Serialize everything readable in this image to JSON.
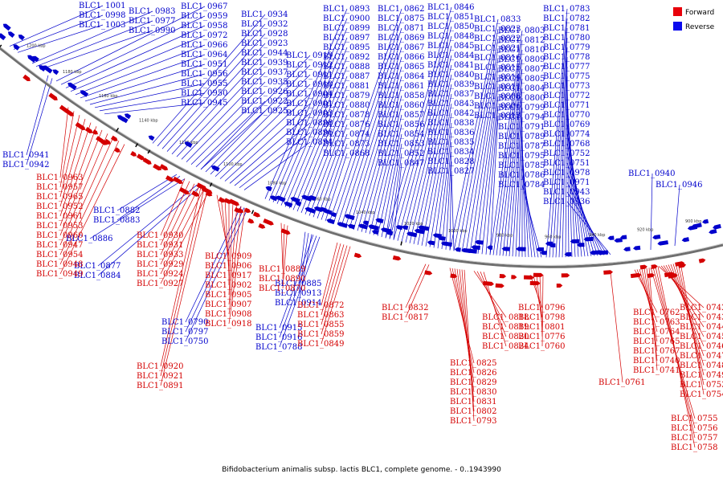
{
  "caption": "Bifidobacterium animalis subsp. lactis BLC1, complete genome. - 0..1943990",
  "legend": [
    {
      "label": "Forward",
      "color": "#e8000a"
    },
    {
      "label": "Reverse",
      "color": "#0a0aee"
    }
  ],
  "colors": {
    "forward": "#d40000",
    "reverse": "#0000cc",
    "backbone": "#6f6f6f"
  },
  "scale_ticks": [
    "1200 kbp",
    "1180 kbp",
    "1160 kbp",
    "1140 kbp",
    "1120 kbp",
    "1100 kbp",
    "1080 kbp",
    "1060 kbp",
    "1040 kbp",
    "1020 kbp",
    "1000 kbp",
    "980 kbp",
    "960 kbp",
    "940 kbp",
    "920 kbp",
    "900 kbp"
  ],
  "reverse_labels": [
    "BLC1_1001",
    "BLC1_0998",
    "BLC1_1003",
    "BLC1_0983",
    "BLC1_0977",
    "BLC1_0990",
    "BLC1_0967",
    "BLC1_0959",
    "BLC1_0958",
    "BLC1_0972",
    "BLC1_0966",
    "BLC1_0964",
    "BLC1_0951",
    "BLC1_0956",
    "BLC1_0955",
    "BLC1_0950",
    "BLC1_0945",
    "BLC1_0934",
    "BLC1_0932",
    "BLC1_0928",
    "BLC1_0923",
    "BLC1_0944",
    "BLC1_0939",
    "BLC1_0937",
    "BLC1_0935",
    "BLC1_0926",
    "BLC1_0922",
    "BLC1_0925",
    "BLC1_0919",
    "BLC1_0912",
    "BLC1_0911",
    "BLC1_0910",
    "BLC1_0904",
    "BLC1_0901",
    "BLC1_0903",
    "BLC1_0898",
    "BLC1_0896",
    "BLC1_0894",
    "BLC1_0893",
    "BLC1_0900",
    "BLC1_0899",
    "BLC1_0897",
    "BLC1_0895",
    "BLC1_0892",
    "BLC1_0888",
    "BLC1_0887",
    "BLC1_0881",
    "BLC1_0879",
    "BLC1_0880",
    "BLC1_0878",
    "BLC1_0876",
    "BLC1_0874",
    "BLC1_0873",
    "BLC1_0868",
    "BLC1_0862",
    "BLC1_0875",
    "BLC1_0871",
    "BLC1_0869",
    "BLC1_0867",
    "BLC1_0866",
    "BLC1_0865",
    "BLC1_0864",
    "BLC1_0861",
    "BLC1_0858",
    "BLC1_0860",
    "BLC1_0857",
    "BLC1_0856",
    "BLC1_0854",
    "BLC1_0853",
    "BLC1_0852",
    "BLC1_0847",
    "BLC1_0846",
    "BLC1_0851",
    "BLC1_0850",
    "BLC1_0848",
    "BLC1_0845",
    "BLC1_0844",
    "BLC1_0841",
    "BLC1_0840",
    "BLC1_0839",
    "BLC1_0837",
    "BLC1_0843",
    "BLC1_0842",
    "BLC1_0838",
    "BLC1_0836",
    "BLC1_0835",
    "BLC1_0834",
    "BLC1_0828",
    "BLC1_0827",
    "BLC1_0833",
    "BLC1_0823",
    "BLC1_0822",
    "BLC1_0821",
    "BLC1_0816",
    "BLC1_0815",
    "BLC1_0814",
    "BLC1_0811",
    "BLC1_0808",
    "BLC1_0806",
    "BLC1_0813",
    "BLC1_0803",
    "BLC1_0812",
    "BLC1_0810",
    "BLC1_0809",
    "BLC1_0807",
    "BLC1_0805",
    "BLC1_0804",
    "BLC1_0800",
    "BLC1_0799",
    "BLC1_0794",
    "BLC1_0791",
    "BLC1_0789",
    "BLC1_0787",
    "BLC1_0795",
    "BLC1_0785",
    "BLC1_0786",
    "BLC1_0784",
    "BLC1_0783",
    "BLC1_0782",
    "BLC1_0781",
    "BLC1_0780",
    "BLC1_0779",
    "BLC1_0778",
    "BLC1_0777",
    "BLC1_0775",
    "BLC1_0773",
    "BLC1_0772",
    "BLC1_0771",
    "BLC1_0770",
    "BLC1_0769",
    "BLC1_0774",
    "BLC1_0768",
    "BLC1_0752",
    "BLC1_0751",
    "BLC1_0978",
    "BLC1_0971",
    "BLC1_0943",
    "BLC1_0936",
    "BLC1_0940",
    "BLC1_0946",
    "BLC1_0941",
    "BLC1_0942",
    "BLC1_0882",
    "BLC1_0883",
    "BLC1_0886",
    "BLC1_0877",
    "BLC1_0884",
    "BLC1_0885",
    "BLC1_0913",
    "BLC1_0914",
    "BLC1_0915",
    "BLC1_0916",
    "BLC1_0788",
    "BLC1_0790",
    "BLC1_0797",
    "BLC1_0750"
  ],
  "forward_labels": [
    "BLC1_0963",
    "BLC1_0957",
    "BLC1_0965",
    "BLC1_0952",
    "BLC1_0961",
    "BLC1_0953",
    "BLC1_0960",
    "BLC1_0947",
    "BLC1_0954",
    "BLC1_0948",
    "BLC1_0949",
    "BLC1_0930",
    "BLC1_0931",
    "BLC1_0933",
    "BLC1_0929",
    "BLC1_0924",
    "BLC1_0927",
    "BLC1_0909",
    "BLC1_0906",
    "BLC1_0917",
    "BLC1_0902",
    "BLC1_0905",
    "BLC1_0907",
    "BLC1_0908",
    "BLC1_0918",
    "BLC1_0920",
    "BLC1_0921",
    "BLC1_0891",
    "BLC1_0889",
    "BLC1_0890",
    "BLC1_0870",
    "BLC1_0872",
    "BLC1_0863",
    "BLC1_0855",
    "BLC1_0859",
    "BLC1_0849",
    "BLC1_0832",
    "BLC1_0817",
    "BLC1_0818",
    "BLC1_0819",
    "BLC1_0820",
    "BLC1_0824",
    "BLC1_0825",
    "BLC1_0826",
    "BLC1_0829",
    "BLC1_0830",
    "BLC1_0831",
    "BLC1_0802",
    "BLC1_0793",
    "BLC1_0796",
    "BLC1_0798",
    "BLC1_0801",
    "BLC1_0776",
    "BLC1_0760",
    "BLC1_0761",
    "BLC1_0762",
    "BLC1_0763",
    "BLC1_0764",
    "BLC1_0765",
    "BLC1_0767",
    "BLC1_0740",
    "BLC1_0741",
    "BLC1_0742",
    "BLC1_0743",
    "BLC1_0744",
    "BLC1_0745",
    "BLC1_0746",
    "BLC1_0747",
    "BLC1_0748",
    "BLC1_0749",
    "BLC1_0753",
    "BLC1_0754",
    "BLC1_0755",
    "BLC1_0756",
    "BLC1_0757",
    "BLC1_0758"
  ]
}
